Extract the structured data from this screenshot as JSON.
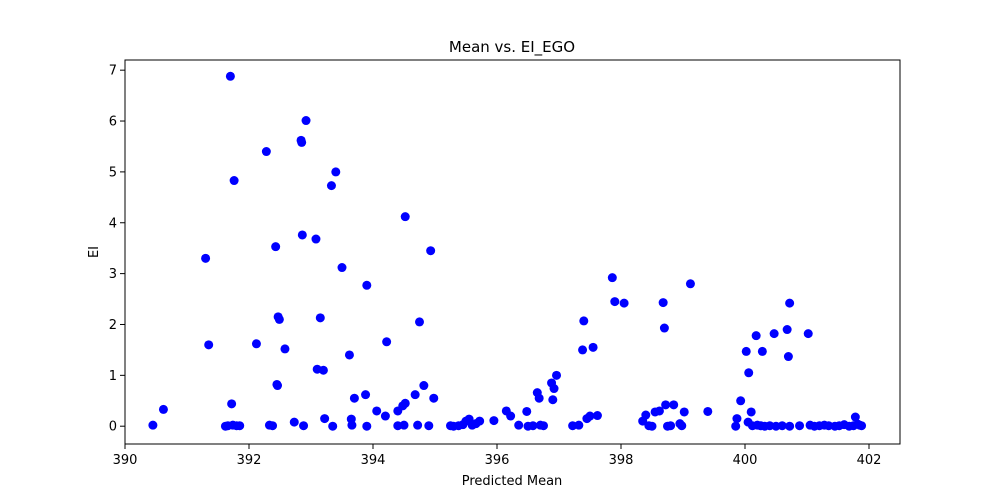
{
  "chart_data": {
    "type": "scatter",
    "title": "Mean vs. EI_EGO",
    "xlabel": "Predicted Mean",
    "ylabel": "EI",
    "xlim": [
      390.0,
      402.5
    ],
    "ylim": [
      -0.35,
      7.2
    ],
    "xticks": [
      390,
      392,
      394,
      396,
      398,
      400,
      402
    ],
    "yticks": [
      0,
      1,
      2,
      3,
      4,
      5,
      6,
      7
    ],
    "grid": false,
    "marker_color": "#0000ff",
    "points": [
      [
        390.45,
        0.02
      ],
      [
        390.62,
        0.33
      ],
      [
        391.3,
        3.3
      ],
      [
        391.35,
        1.6
      ],
      [
        391.62,
        0.0
      ],
      [
        391.66,
        0.01
      ],
      [
        391.7,
        6.88
      ],
      [
        391.72,
        0.44
      ],
      [
        391.74,
        0.02
      ],
      [
        391.76,
        4.83
      ],
      [
        391.8,
        0.01
      ],
      [
        391.85,
        0.01
      ],
      [
        392.12,
        1.62
      ],
      [
        392.28,
        5.4
      ],
      [
        392.33,
        0.02
      ],
      [
        392.38,
        0.01
      ],
      [
        392.43,
        3.53
      ],
      [
        392.45,
        0.82
      ],
      [
        392.46,
        0.8
      ],
      [
        392.47,
        2.15
      ],
      [
        392.49,
        2.1
      ],
      [
        392.58,
        1.52
      ],
      [
        392.73,
        0.08
      ],
      [
        392.84,
        5.62
      ],
      [
        392.85,
        5.58
      ],
      [
        392.86,
        3.76
      ],
      [
        392.88,
        0.01
      ],
      [
        392.92,
        6.01
      ],
      [
        393.08,
        3.68
      ],
      [
        393.1,
        1.12
      ],
      [
        393.15,
        2.13
      ],
      [
        393.2,
        1.1
      ],
      [
        393.22,
        0.15
      ],
      [
        393.33,
        4.73
      ],
      [
        393.35,
        0.0
      ],
      [
        393.4,
        5.0
      ],
      [
        393.5,
        3.12
      ],
      [
        393.62,
        1.4
      ],
      [
        393.65,
        0.14
      ],
      [
        393.66,
        0.02
      ],
      [
        393.7,
        0.55
      ],
      [
        393.88,
        0.62
      ],
      [
        393.9,
        0.0
      ],
      [
        393.9,
        2.77
      ],
      [
        394.06,
        0.3
      ],
      [
        394.2,
        0.2
      ],
      [
        394.22,
        1.66
      ],
      [
        394.4,
        0.01
      ],
      [
        394.4,
        0.3
      ],
      [
        394.48,
        0.4
      ],
      [
        394.5,
        0.02
      ],
      [
        394.52,
        4.12
      ],
      [
        394.52,
        0.45
      ],
      [
        394.68,
        0.62
      ],
      [
        394.72,
        0.02
      ],
      [
        394.75,
        2.05
      ],
      [
        394.82,
        0.8
      ],
      [
        394.9,
        0.01
      ],
      [
        394.93,
        3.45
      ],
      [
        394.98,
        0.55
      ],
      [
        395.25,
        0.01
      ],
      [
        395.3,
        0.0
      ],
      [
        395.38,
        0.01
      ],
      [
        395.45,
        0.03
      ],
      [
        395.5,
        0.1
      ],
      [
        395.55,
        0.14
      ],
      [
        395.6,
        0.02
      ],
      [
        395.66,
        0.05
      ],
      [
        395.72,
        0.1
      ],
      [
        395.95,
        0.11
      ],
      [
        396.15,
        0.3
      ],
      [
        396.22,
        0.2
      ],
      [
        396.35,
        0.02
      ],
      [
        396.48,
        0.29
      ],
      [
        396.5,
        0.0
      ],
      [
        396.58,
        0.01
      ],
      [
        396.65,
        0.66
      ],
      [
        396.68,
        0.55
      ],
      [
        396.7,
        0.02
      ],
      [
        396.75,
        0.01
      ],
      [
        396.88,
        0.85
      ],
      [
        396.9,
        0.52
      ],
      [
        396.92,
        0.74
      ],
      [
        396.96,
        1.0
      ],
      [
        397.22,
        0.01
      ],
      [
        397.32,
        0.02
      ],
      [
        397.38,
        1.5
      ],
      [
        397.4,
        2.07
      ],
      [
        397.45,
        0.15
      ],
      [
        397.5,
        0.2
      ],
      [
        397.55,
        1.55
      ],
      [
        397.62,
        0.21
      ],
      [
        397.86,
        2.92
      ],
      [
        397.9,
        2.45
      ],
      [
        398.05,
        2.42
      ],
      [
        398.35,
        0.1
      ],
      [
        398.4,
        0.22
      ],
      [
        398.45,
        0.01
      ],
      [
        398.5,
        0.0
      ],
      [
        398.55,
        0.28
      ],
      [
        398.62,
        0.3
      ],
      [
        398.68,
        2.43
      ],
      [
        398.7,
        1.93
      ],
      [
        398.72,
        0.42
      ],
      [
        398.75,
        0.0
      ],
      [
        398.8,
        0.01
      ],
      [
        398.85,
        0.42
      ],
      [
        398.95,
        0.05
      ],
      [
        398.98,
        0.01
      ],
      [
        399.02,
        0.28
      ],
      [
        399.12,
        2.8
      ],
      [
        399.4,
        0.29
      ],
      [
        399.85,
        0.0
      ],
      [
        399.87,
        0.15
      ],
      [
        399.93,
        0.5
      ],
      [
        400.02,
        1.47
      ],
      [
        400.05,
        0.08
      ],
      [
        400.06,
        1.05
      ],
      [
        400.1,
        0.28
      ],
      [
        400.12,
        0.01
      ],
      [
        400.18,
        1.78
      ],
      [
        400.2,
        0.02
      ],
      [
        400.25,
        0.01
      ],
      [
        400.28,
        1.47
      ],
      [
        400.32,
        0.0
      ],
      [
        400.4,
        0.01
      ],
      [
        400.47,
        1.82
      ],
      [
        400.5,
        0.0
      ],
      [
        400.6,
        0.01
      ],
      [
        400.68,
        1.9
      ],
      [
        400.7,
        1.37
      ],
      [
        400.72,
        2.42
      ],
      [
        400.72,
        0.0
      ],
      [
        400.88,
        0.01
      ],
      [
        401.02,
        1.82
      ],
      [
        401.05,
        0.02
      ],
      [
        401.12,
        0.0
      ],
      [
        401.2,
        0.01
      ],
      [
        401.28,
        0.02
      ],
      [
        401.35,
        0.01
      ],
      [
        401.45,
        0.0
      ],
      [
        401.52,
        0.01
      ],
      [
        401.6,
        0.03
      ],
      [
        401.68,
        0.0
      ],
      [
        401.75,
        0.01
      ],
      [
        401.78,
        0.18
      ],
      [
        401.82,
        0.04
      ],
      [
        401.85,
        0.02
      ],
      [
        401.88,
        0.01
      ]
    ]
  }
}
